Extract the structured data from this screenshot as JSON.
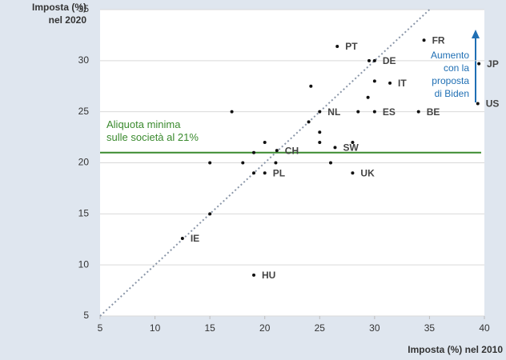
{
  "chart_data": {
    "type": "scatter",
    "y_label_lines": [
      "Imposta (%)",
      "nel 2020"
    ],
    "x_label": "Imposta (%) nel 2010",
    "xlim": [
      5,
      40
    ],
    "xticks": [
      5,
      10,
      15,
      20,
      25,
      30,
      35,
      40
    ],
    "ylim": [
      5,
      35
    ],
    "yticks": [
      5,
      10,
      15,
      20,
      25,
      30,
      35
    ],
    "grid": true,
    "diagonal": true,
    "color": "#111111",
    "x": [
      34.5,
      26.6,
      30,
      29.5,
      39.5,
      31.4,
      30,
      24.2,
      29.4,
      39.4,
      17,
      25,
      28.5,
      30,
      34,
      24,
      25,
      20,
      25,
      28,
      21.1,
      26.4,
      19,
      15,
      18,
      21,
      26,
      20,
      19,
      28,
      15,
      12.5,
      19
    ],
    "y": [
      32,
      31.4,
      30,
      30,
      29.7,
      27.8,
      28,
      27.5,
      26.4,
      25.8,
      25,
      25,
      25,
      25,
      25,
      24,
      23,
      22,
      22,
      22,
      21.2,
      21.5,
      21,
      20,
      20,
      20,
      20,
      19,
      19,
      19,
      15,
      12.6,
      9
    ],
    "labels": [
      "FR",
      "PT",
      "DE",
      null,
      "JP",
      "IT",
      null,
      null,
      null,
      "US",
      null,
      "NL",
      null,
      "ES",
      "BE",
      null,
      null,
      null,
      null,
      null,
      "CH",
      "SW",
      null,
      null,
      null,
      null,
      null,
      "PL",
      null,
      "UK",
      null,
      "IE",
      "HU"
    ],
    "reference_line": {
      "value": 21,
      "color": "#3a8a2e",
      "label_lines": [
        "Aliquota minima",
        "sulle società al 21%"
      ]
    },
    "annotation": {
      "color": "#1f6fb4",
      "lines": [
        "Aumento",
        "con la",
        "proposta",
        "di Biden"
      ]
    }
  }
}
